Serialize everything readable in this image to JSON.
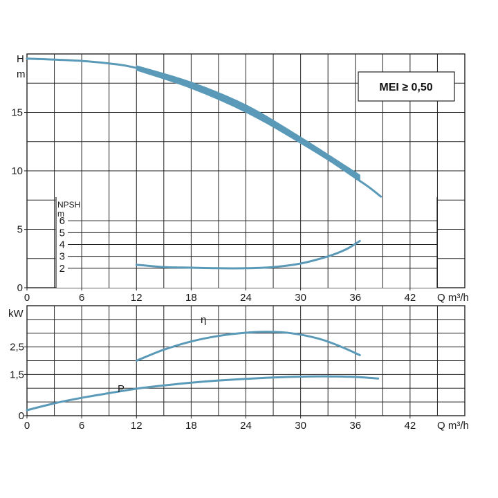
{
  "chart_data": [
    {
      "type": "line",
      "name": "head",
      "ylabel_top": "H",
      "ylabel_unit": "m",
      "xlabel": "Q m³/h",
      "xlim": [
        0,
        48
      ],
      "ylim": [
        0,
        20
      ],
      "x_ticks": [
        "0",
        "6",
        "12",
        "18",
        "24",
        "30",
        "36",
        "42"
      ],
      "y_ticks": [
        "0",
        "5",
        "10",
        "15"
      ],
      "badge": "MEI ≥ 0,50",
      "series": [
        {
          "values": [
            [
              0,
              19.6
            ],
            [
              6,
              19.4
            ],
            [
              10,
              19.1
            ],
            [
              12,
              18.8
            ],
            [
              15,
              18.2
            ],
            [
              18,
              17.3
            ],
            [
              21,
              16.4
            ],
            [
              24,
              15.3
            ],
            [
              27,
              14.0
            ],
            [
              30,
              12.6
            ],
            [
              33,
              11.0
            ],
            [
              36,
              9.4
            ],
            [
              37.5,
              8.6
            ],
            [
              38.8,
              7.8
            ]
          ]
        }
      ],
      "band": {
        "x_range": [
          12,
          36.5
        ],
        "upper": [
          [
            12,
            19.0
          ],
          [
            18,
            17.6
          ],
          [
            24,
            15.65
          ],
          [
            30,
            12.9
          ],
          [
            36.5,
            9.65
          ]
        ],
        "lower": [
          [
            12,
            18.6
          ],
          [
            18,
            17.05
          ],
          [
            24,
            15.0
          ],
          [
            30,
            12.35
          ],
          [
            36.5,
            9.2
          ]
        ]
      },
      "npsh": {
        "label_top": "NPSH",
        "label_unit": "m",
        "y_ticks": [
          "2",
          "3",
          "4",
          "5",
          "6"
        ],
        "ylim": [
          1,
          7
        ],
        "values": [
          [
            12,
            2.3
          ],
          [
            15,
            2.1
          ],
          [
            18,
            2.05
          ],
          [
            21,
            2.0
          ],
          [
            24,
            2.0
          ],
          [
            27,
            2.1
          ],
          [
            30,
            2.4
          ],
          [
            33,
            3.0
          ],
          [
            35,
            3.6
          ],
          [
            36.5,
            4.3
          ]
        ]
      }
    },
    {
      "type": "line",
      "name": "power-efficiency",
      "ylabel_top": "kW",
      "xlabel": "Q m³/h",
      "xlim": [
        0,
        48
      ],
      "ylim": [
        0,
        4
      ],
      "x_ticks": [
        "0",
        "6",
        "12",
        "18",
        "24",
        "30",
        "36",
        "42"
      ],
      "y_ticks": [
        "0",
        "1,5",
        "2,5"
      ],
      "series": [
        {
          "name": "P",
          "values": [
            [
              0,
              0.2
            ],
            [
              3,
              0.45
            ],
            [
              6,
              0.65
            ],
            [
              9,
              0.82
            ],
            [
              12,
              0.98
            ],
            [
              15,
              1.1
            ],
            [
              18,
              1.2
            ],
            [
              21,
              1.28
            ],
            [
              24,
              1.34
            ],
            [
              27,
              1.39
            ],
            [
              30,
              1.42
            ],
            [
              33,
              1.43
            ],
            [
              36,
              1.41
            ],
            [
              38.5,
              1.35
            ]
          ]
        },
        {
          "name": "η",
          "values": [
            [
              12,
              2.0
            ],
            [
              15,
              2.4
            ],
            [
              18,
              2.7
            ],
            [
              21,
              2.9
            ],
            [
              24,
              3.02
            ],
            [
              26.5,
              3.05
            ],
            [
              29,
              3.0
            ],
            [
              32,
              2.8
            ],
            [
              34.5,
              2.5
            ],
            [
              36.5,
              2.2
            ]
          ]
        }
      ]
    }
  ],
  "colors": {
    "curve": "#5a9ab8",
    "grid": "#222222",
    "text": "#1a1a1a"
  }
}
